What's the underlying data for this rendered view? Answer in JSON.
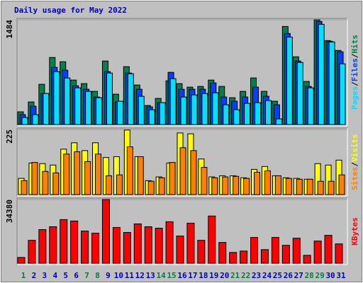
{
  "chart_data": [
    {
      "type": "bar",
      "title": "Daily usage for May 2022",
      "title_color": "#0000c0",
      "ylim": [
        0,
        1484
      ],
      "yticks": [
        1484
      ],
      "legend_separator": "/",
      "series": [
        {
          "name": "Hits",
          "color": "#008050",
          "values": [
            180,
            320,
            570,
            950,
            890,
            630,
            580,
            470,
            900,
            430,
            820,
            560,
            270,
            370,
            620,
            580,
            530,
            540,
            630,
            540,
            380,
            470,
            660,
            470,
            330,
            1390,
            960,
            610,
            1484,
            1190,
            1050
          ]
        },
        {
          "name": "Files",
          "color": "#0040ff",
          "values": [
            140,
            260,
            440,
            810,
            770,
            550,
            500,
            390,
            750,
            320,
            730,
            500,
            250,
            310,
            740,
            500,
            500,
            500,
            590,
            390,
            330,
            390,
            530,
            400,
            280,
            1290,
            900,
            540,
            1460,
            1180,
            1030
          ]
        },
        {
          "name": "Pages",
          "color": "#00e0ff",
          "values": [
            100,
            140,
            440,
            750,
            660,
            520,
            470,
            380,
            730,
            330,
            720,
            400,
            210,
            310,
            650,
            390,
            420,
            440,
            450,
            280,
            210,
            300,
            310,
            340,
            80,
            1240,
            880,
            520,
            1420,
            1170,
            860
          ]
        }
      ]
    },
    {
      "type": "bar",
      "ylim": [
        0,
        225
      ],
      "yticks": [
        225
      ],
      "legend_separator": "/",
      "series": [
        {
          "name": "Visits",
          "color": "#ffff00",
          "values": [
            56,
            109,
            107,
            102,
            157,
            179,
            152,
            179,
            128,
            131,
            223,
            131,
            48,
            61,
            109,
            213,
            210,
            123,
            61,
            65,
            65,
            58,
            87,
            97,
            65,
            58,
            56,
            53,
            107,
            102,
            119
          ]
        },
        {
          "name": "Sites",
          "color": "#ff8000",
          "values": [
            48,
            111,
            80,
            75,
            140,
            148,
            114,
            140,
            65,
            68,
            165,
            131,
            46,
            58,
            111,
            162,
            152,
            94,
            58,
            61,
            63,
            56,
            77,
            82,
            65,
            56,
            53,
            53,
            46,
            46,
            68
          ]
        }
      ]
    },
    {
      "type": "bar",
      "ylim": [
        0,
        34380
      ],
      "yticks": [
        34380
      ],
      "series": [
        {
          "name": "KBytes",
          "color": "#ff0000",
          "values": [
            3090,
            12350,
            18140,
            19690,
            23550,
            22780,
            17370,
            16210,
            34380,
            19300,
            16600,
            21230,
            19690,
            18910,
            22390,
            14670,
            21620,
            12350,
            25480,
            11190,
            5790,
            6560,
            13900,
            7330,
            13900,
            9650,
            13510,
            4250,
            11970,
            15050,
            10420
          ]
        }
      ],
      "categories": [
        "1",
        "2",
        "3",
        "4",
        "5",
        "6",
        "7",
        "8",
        "9",
        "10",
        "11",
        "12",
        "13",
        "14",
        "15",
        "16",
        "17",
        "18",
        "19",
        "20",
        "21",
        "22",
        "23",
        "24",
        "25",
        "26",
        "27",
        "28",
        "29",
        "30",
        "31"
      ],
      "label_colors": [
        "#008040",
        "#0000c0",
        "#0000c0",
        "#0000c0",
        "#0000c0",
        "#0000c0",
        "#008040",
        "#008040",
        "#0000c0",
        "#0000c0",
        "#0000c0",
        "#0000c0",
        "#0000c0",
        "#008040",
        "#008040",
        "#0000c0",
        "#0000c0",
        "#0000c0",
        "#0000c0",
        "#0000c0",
        "#008040",
        "#008040",
        "#0000c0",
        "#0000c0",
        "#0000c0",
        "#0000c0",
        "#0000c0",
        "#008040",
        "#008040",
        "#0000c0",
        "#0000c0"
      ]
    }
  ]
}
